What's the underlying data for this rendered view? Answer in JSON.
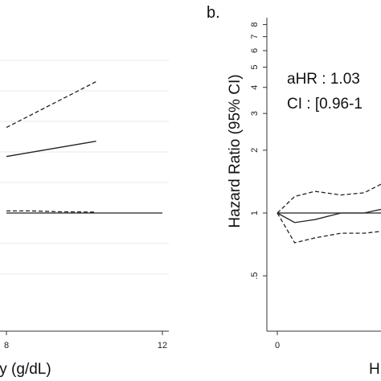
{
  "chart_data": [
    {
      "type": "line",
      "panel": "",
      "xlabel": "ty (g/dL)",
      "ylabel": "",
      "x_ticks": [
        8,
        12
      ],
      "grid": true,
      "series": [
        {
          "style": "dashed",
          "x": [
            8.0,
            10.3
          ],
          "y": [
            5.6,
            8.6
          ]
        },
        {
          "style": "solid",
          "x": [
            8.0,
            10.3
          ],
          "y": [
            3.7,
            4.7
          ]
        },
        {
          "style": "dashed",
          "x": [
            8.0,
            8.6,
            9.4,
            10.3
          ],
          "y": [
            0.14,
            0.14,
            0.08,
            0.06
          ]
        },
        {
          "style": "solid",
          "x": [
            8.0,
            12.0
          ],
          "y": [
            0.0,
            0.0
          ]
        }
      ]
    },
    {
      "type": "line",
      "panel": "b.",
      "xlabel": "H",
      "ylabel": "Hazard Ratio (95% CI)",
      "y_scale": "log",
      "y_ticks": [
        0.5,
        1,
        2,
        3,
        4,
        5,
        6,
        7,
        8
      ],
      "y_tick_labels": [
        ".5",
        "1",
        "2",
        "3",
        "4",
        "5",
        "6",
        "7",
        "8"
      ],
      "x_ticks": [
        0
      ],
      "x_tick_labels": [
        "0"
      ],
      "grid": false,
      "annotations": [
        "aHR : 1.03",
        "CI : [0.96-1"
      ],
      "series": [
        {
          "style": "solid",
          "x": [
            0,
            0.6,
            1.3,
            2.2,
            3.0,
            3.7
          ],
          "y": [
            1.0,
            0.9,
            0.93,
            1.0,
            1.0,
            1.05
          ]
        },
        {
          "style": "dashed",
          "x": [
            0,
            0.6,
            1.3,
            2.2,
            3.0,
            3.7
          ],
          "y": [
            1.0,
            1.2,
            1.27,
            1.22,
            1.25,
            1.4
          ]
        },
        {
          "style": "dashed",
          "x": [
            0,
            0.6,
            1.3,
            2.2,
            3.0,
            3.7
          ],
          "y": [
            1.0,
            0.72,
            0.76,
            0.8,
            0.8,
            0.82
          ]
        },
        {
          "style": "solid",
          "x": [
            0,
            3.7
          ],
          "y": [
            1.0,
            1.0
          ]
        }
      ]
    }
  ]
}
